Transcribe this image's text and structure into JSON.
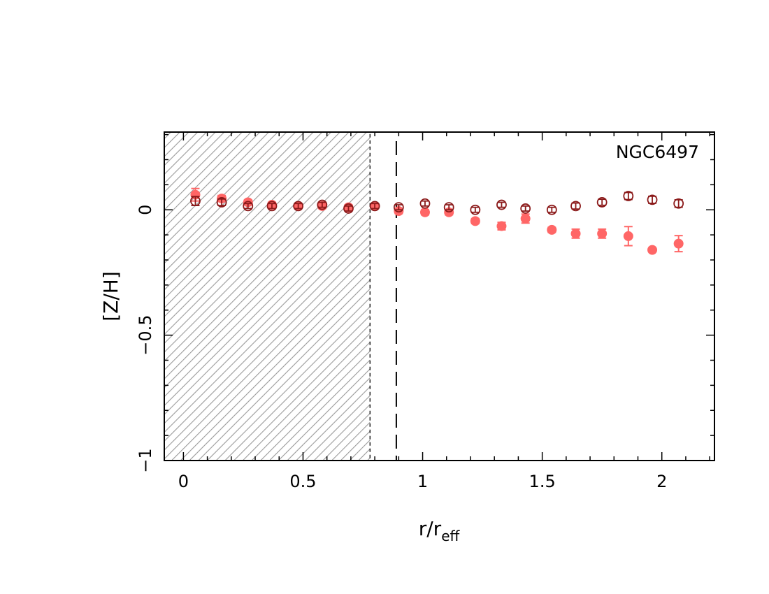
{
  "chart_data": {
    "type": "scatter",
    "xlabel": "r/r",
    "xlabel_sub": "eff",
    "ylabel": "[Z/H]",
    "xlim": [
      -0.08,
      2.22
    ],
    "ylim": [
      -1.0,
      0.31
    ],
    "xticks": [
      0,
      0.5,
      1,
      1.5,
      2
    ],
    "xtick_labels": [
      "0",
      "0.5",
      "1",
      "1.5",
      "2"
    ],
    "yticks": [
      0,
      -0.5,
      -1
    ],
    "ytick_labels": [
      "0",
      "−0.5",
      "−1"
    ],
    "annotation": "NGC6497",
    "shaded_region": [
      -0.08,
      0.78
    ],
    "vline": 0.89,
    "grid": false,
    "series": [
      {
        "style": "filled",
        "color": "#ff6666",
        "x": [
          0.05,
          0.16,
          0.27,
          0.37,
          0.48,
          0.58,
          0.69,
          0.8,
          0.9,
          1.01,
          1.11,
          1.22,
          1.33,
          1.43,
          1.54,
          1.64,
          1.75,
          1.86,
          1.96,
          2.07
        ],
        "y": [
          0.06,
          0.045,
          0.03,
          0.02,
          0.015,
          0.015,
          0.01,
          0.015,
          -0.005,
          -0.01,
          -0.01,
          -0.045,
          -0.065,
          -0.035,
          -0.08,
          -0.095,
          -0.095,
          -0.105,
          -0.16,
          -0.135
        ],
        "err": [
          0.025,
          0.012,
          0.01,
          0.01,
          0.01,
          0.01,
          0.01,
          0.01,
          0.01,
          0.01,
          0.01,
          0.01,
          0.015,
          0.018,
          0.01,
          0.018,
          0.018,
          0.038,
          0.008,
          0.032
        ]
      },
      {
        "style": "open",
        "color": "#8b1a1a",
        "x": [
          0.05,
          0.16,
          0.27,
          0.37,
          0.48,
          0.58,
          0.69,
          0.8,
          0.9,
          1.01,
          1.11,
          1.22,
          1.33,
          1.43,
          1.54,
          1.64,
          1.75,
          1.86,
          1.96,
          2.07
        ],
        "y": [
          0.035,
          0.03,
          0.015,
          0.015,
          0.015,
          0.02,
          0.005,
          0.015,
          0.01,
          0.025,
          0.01,
          0.0,
          0.02,
          0.005,
          0.0,
          0.015,
          0.03,
          0.055,
          0.04,
          0.025
        ],
        "err": [
          0.018,
          0.013,
          0.01,
          0.01,
          0.01,
          0.01,
          0.01,
          0.01,
          0.01,
          0.01,
          0.01,
          0.01,
          0.01,
          0.01,
          0.01,
          0.012,
          0.012,
          0.014,
          0.014,
          0.015
        ]
      }
    ]
  }
}
